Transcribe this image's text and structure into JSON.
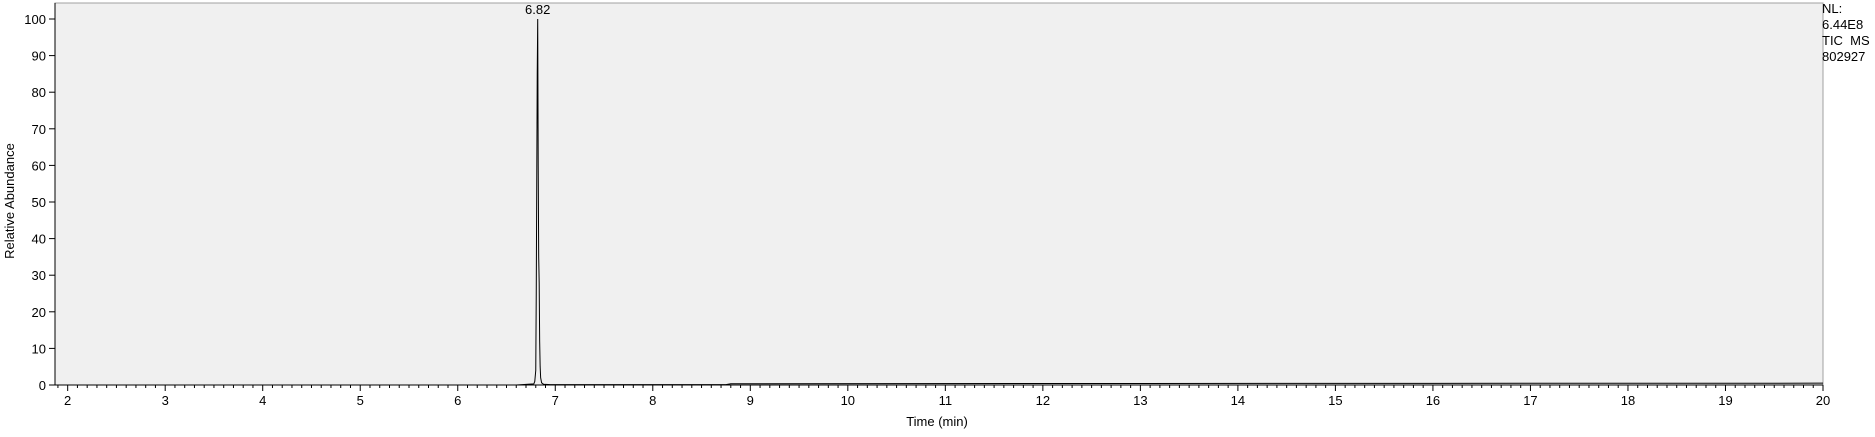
{
  "chart_data": {
    "type": "line",
    "title": "",
    "xlabel": "Time (min)",
    "ylabel": "Relative Abundance",
    "xlim": [
      1.87,
      20.0
    ],
    "ylim": [
      0,
      100
    ],
    "x_ticks": [
      2,
      3,
      4,
      5,
      6,
      7,
      8,
      9,
      10,
      11,
      12,
      13,
      14,
      15,
      16,
      17,
      18,
      19,
      20
    ],
    "y_ticks": [
      0,
      10,
      20,
      30,
      40,
      50,
      60,
      70,
      80,
      90,
      100
    ],
    "grid": false,
    "background_color": "#f0f0f0",
    "line_color": "#000000",
    "series": [
      {
        "x": [
          1.87,
          6.6,
          6.78,
          6.79,
          6.8,
          6.805,
          6.81,
          6.815,
          6.82,
          6.825,
          6.83,
          6.835,
          6.84,
          6.845,
          6.85,
          6.86,
          6.88,
          6.95,
          8.75,
          8.8,
          12.0,
          16.0,
          20.0
        ],
        "y": [
          0.0,
          0.0,
          0.3,
          1.0,
          4.0,
          25.0,
          55.0,
          85.0,
          100.0,
          60.0,
          35.0,
          28.0,
          12.0,
          5.0,
          2.0,
          0.6,
          0.2,
          0.1,
          0.1,
          0.35,
          0.4,
          0.45,
          0.5
        ]
      }
    ],
    "peak_labels": [
      {
        "x": 6.82,
        "y": 100,
        "label": "6.82"
      }
    ]
  },
  "info": {
    "lines": [
      "NL:",
      "6.44E8",
      "TIC  MS",
      "802927"
    ]
  }
}
